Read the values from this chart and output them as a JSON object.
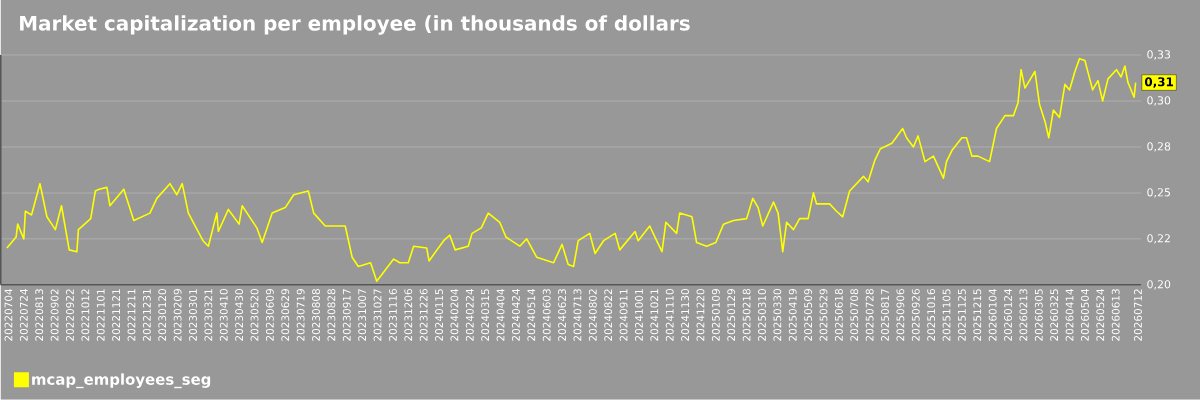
{
  "chart_data": {
    "type": "line",
    "title": "Market capitalization per employee (in thousands of dollars",
    "x": [
      "2022-07-02",
      "2022-07-14",
      "2022-07-16",
      "2022-07-24",
      "2022-07-26",
      "2022-08-03",
      "2022-08-14",
      "2022-08-23",
      "2022-09-03",
      "2022-09-11",
      "2022-09-21",
      "2022-10-01",
      "2022-10-03",
      "2022-10-19",
      "2022-10-25",
      "2022-10-30",
      "2022-11-09",
      "2022-11-13",
      "2022-12-01",
      "2022-12-14",
      "2023-01-04",
      "2023-01-13",
      "2023-01-30",
      "2023-02-08",
      "2023-02-15",
      "2023-02-23",
      "2023-03-14",
      "2023-03-21",
      "2023-04-01",
      "2023-04-03",
      "2023-04-16",
      "2023-04-30",
      "2023-05-04",
      "2023-05-23",
      "2023-05-30",
      "2023-06-12",
      "2023-06-29",
      "2023-07-10",
      "2023-07-29",
      "2023-08-05",
      "2023-08-20",
      "2023-09-15",
      "2023-09-24",
      "2023-10-02",
      "2023-10-18",
      "2023-10-26",
      "2023-11-17",
      "2023-11-25",
      "2023-12-06",
      "2023-12-13",
      "2023-12-30",
      "2024-01-02",
      "2024-01-21",
      "2024-01-29",
      "2024-02-05",
      "2024-02-22",
      "2024-02-27",
      "2024-03-10",
      "2024-03-19",
      "2024-04-03",
      "2024-04-11",
      "2024-04-29",
      "2024-05-08",
      "2024-05-21",
      "2024-06-12",
      "2024-06-23",
      "2024-07-01",
      "2024-07-08",
      "2024-07-14",
      "2024-07-29",
      "2024-08-05",
      "2024-08-16",
      "2024-08-31",
      "2024-09-06",
      "2024-09-26",
      "2024-09-30",
      "2024-10-15",
      "2024-10-24",
      "2024-10-31",
      "2024-11-05",
      "2024-11-19",
      "2024-11-23",
      "2024-12-09",
      "2024-12-15",
      "2024-12-28",
      "2025-01-09",
      "2025-01-19",
      "2025-02-01",
      "2025-02-18",
      "2025-02-26",
      "2025-03-05",
      "2025-03-11",
      "2025-03-25",
      "2025-03-31",
      "2025-04-06",
      "2025-04-11",
      "2025-04-20",
      "2025-04-28",
      "2025-05-09",
      "2025-05-16",
      "2025-05-20",
      "2025-06-06",
      "2025-06-15",
      "2025-06-23",
      "2025-07-02",
      "2025-07-20",
      "2025-07-26",
      "2025-08-04",
      "2025-08-11",
      "2025-08-26",
      "2025-09-09",
      "2025-09-14",
      "2025-09-23",
      "2025-09-29",
      "2025-10-08",
      "2025-10-19",
      "2025-11-01",
      "2025-11-05",
      "2025-11-12",
      "2025-11-25",
      "2025-12-01",
      "2025-12-08",
      "2025-12-16",
      "2025-12-31",
      "2026-01-09",
      "2026-01-20",
      "2026-01-31",
      "2026-02-06",
      "2026-02-10",
      "2026-02-15",
      "2026-02-28",
      "2026-03-06",
      "2026-03-13",
      "2026-03-18",
      "2026-03-24",
      "2026-04-01",
      "2026-04-08",
      "2026-04-14",
      "2026-04-21",
      "2026-04-27",
      "2026-05-04",
      "2026-05-14",
      "2026-05-21",
      "2026-05-27",
      "2026-06-03",
      "2026-06-14",
      "2026-06-20",
      "2026-06-25",
      "2026-06-29",
      "2026-07-07",
      "2026-07-09"
    ],
    "series": [
      {
        "name": "mcap_employees_seg",
        "color": "#ffff00",
        "values": [
          0.22,
          0.226,
          0.233,
          0.225,
          0.24,
          0.238,
          0.255,
          0.237,
          0.23,
          0.243,
          0.219,
          0.218,
          0.23,
          0.236,
          0.251,
          0.252,
          0.253,
          0.243,
          0.252,
          0.235,
          0.239,
          0.247,
          0.255,
          0.249,
          0.255,
          0.239,
          0.224,
          0.221,
          0.239,
          0.229,
          0.241,
          0.233,
          0.243,
          0.231,
          0.223,
          0.239,
          0.242,
          0.249,
          0.251,
          0.239,
          0.232,
          0.232,
          0.215,
          0.21,
          0.212,
          0.202,
          0.214,
          0.212,
          0.212,
          0.221,
          0.22,
          0.213,
          0.224,
          0.227,
          0.219,
          0.221,
          0.228,
          0.231,
          0.239,
          0.234,
          0.226,
          0.221,
          0.225,
          0.215,
          0.212,
          0.222,
          0.211,
          0.21,
          0.224,
          0.228,
          0.217,
          0.224,
          0.228,
          0.219,
          0.229,
          0.224,
          0.232,
          0.224,
          0.218,
          0.234,
          0.228,
          0.239,
          0.237,
          0.223,
          0.221,
          0.223,
          0.233,
          0.235,
          0.236,
          0.247,
          0.242,
          0.232,
          0.245,
          0.239,
          0.218,
          0.234,
          0.23,
          0.236,
          0.236,
          0.25,
          0.244,
          0.244,
          0.24,
          0.237,
          0.251,
          0.259,
          0.256,
          0.268,
          0.274,
          0.277,
          0.285,
          0.28,
          0.275,
          0.281,
          0.267,
          0.27,
          0.258,
          0.267,
          0.273,
          0.28,
          0.28,
          0.27,
          0.27,
          0.267,
          0.285,
          0.292,
          0.292,
          0.299,
          0.317,
          0.307,
          0.316,
          0.298,
          0.289,
          0.28,
          0.295,
          0.291,
          0.309,
          0.306,
          0.316,
          0.323,
          0.322,
          0.306,
          0.311,
          0.3,
          0.312,
          0.317,
          0.313,
          0.319,
          0.31,
          0.302,
          0.31
        ]
      }
    ],
    "xlim": [
      "2022-06-24",
      "2026-07-16"
    ],
    "xticks": [
      {
        "value": "2022-07-04",
        "label": "20220704"
      },
      {
        "value": "2022-07-24",
        "label": "20220724"
      },
      {
        "value": "2022-08-13",
        "label": "20220813"
      },
      {
        "value": "2022-09-02",
        "label": "20220902"
      },
      {
        "value": "2022-09-22",
        "label": "20220922"
      },
      {
        "value": "2022-10-12",
        "label": "20221012"
      },
      {
        "value": "2022-11-01",
        "label": "20221101"
      },
      {
        "value": "2022-11-21",
        "label": "20221121"
      },
      {
        "value": "2022-12-11",
        "label": "20221211"
      },
      {
        "value": "2022-12-31",
        "label": "20221231"
      },
      {
        "value": "2023-01-20",
        "label": "20230120"
      },
      {
        "value": "2023-02-09",
        "label": "20230209"
      },
      {
        "value": "2023-03-01",
        "label": "20230301"
      },
      {
        "value": "2023-03-21",
        "label": "20230321"
      },
      {
        "value": "2023-04-10",
        "label": "20230410"
      },
      {
        "value": "2023-04-30",
        "label": "20230430"
      },
      {
        "value": "2023-05-20",
        "label": "20230520"
      },
      {
        "value": "2023-06-09",
        "label": "20230609"
      },
      {
        "value": "2023-06-29",
        "label": "20230629"
      },
      {
        "value": "2023-07-19",
        "label": "20230719"
      },
      {
        "value": "2023-08-08",
        "label": "20230808"
      },
      {
        "value": "2023-08-28",
        "label": "20230828"
      },
      {
        "value": "2023-09-17",
        "label": "20230917"
      },
      {
        "value": "2023-10-07",
        "label": "20231007"
      },
      {
        "value": "2023-10-27",
        "label": "20231027"
      },
      {
        "value": "2023-11-16",
        "label": "20231116"
      },
      {
        "value": "2023-12-06",
        "label": "20231206"
      },
      {
        "value": "2023-12-26",
        "label": "20231226"
      },
      {
        "value": "2024-01-15",
        "label": "20240115"
      },
      {
        "value": "2024-02-04",
        "label": "20240204"
      },
      {
        "value": "2024-02-24",
        "label": "20240224"
      },
      {
        "value": "2024-03-15",
        "label": "20240315"
      },
      {
        "value": "2024-04-04",
        "label": "20240404"
      },
      {
        "value": "2024-04-24",
        "label": "20240424"
      },
      {
        "value": "2024-05-14",
        "label": "20240514"
      },
      {
        "value": "2024-06-03",
        "label": "20240603"
      },
      {
        "value": "2024-06-23",
        "label": "20240623"
      },
      {
        "value": "2024-07-13",
        "label": "20240713"
      },
      {
        "value": "2024-08-02",
        "label": "20240802"
      },
      {
        "value": "2024-08-22",
        "label": "20240822"
      },
      {
        "value": "2024-09-11",
        "label": "20240911"
      },
      {
        "value": "2024-10-01",
        "label": "20241001"
      },
      {
        "value": "2024-10-21",
        "label": "20241021"
      },
      {
        "value": "2024-11-10",
        "label": "20241110"
      },
      {
        "value": "2024-11-30",
        "label": "20241130"
      },
      {
        "value": "2024-12-20",
        "label": "20241220"
      },
      {
        "value": "2025-01-09",
        "label": "20250109"
      },
      {
        "value": "2025-01-29",
        "label": "20250129"
      },
      {
        "value": "2025-02-18",
        "label": "20250218"
      },
      {
        "value": "2025-03-10",
        "label": "20250310"
      },
      {
        "value": "2025-03-30",
        "label": "20250330"
      },
      {
        "value": "2025-04-19",
        "label": "20250419"
      },
      {
        "value": "2025-05-09",
        "label": "20250509"
      },
      {
        "value": "2025-05-29",
        "label": "20250529"
      },
      {
        "value": "2025-06-18",
        "label": "20250618"
      },
      {
        "value": "2025-07-08",
        "label": "20250708"
      },
      {
        "value": "2025-07-28",
        "label": "20250728"
      },
      {
        "value": "2025-08-17",
        "label": "20250817"
      },
      {
        "value": "2025-09-06",
        "label": "20250906"
      },
      {
        "value": "2025-09-26",
        "label": "20250926"
      },
      {
        "value": "2025-10-16",
        "label": "20251016"
      },
      {
        "value": "2025-11-05",
        "label": "20251105"
      },
      {
        "value": "2025-11-25",
        "label": "20251125"
      },
      {
        "value": "2025-12-15",
        "label": "20251215"
      },
      {
        "value": "2026-01-04",
        "label": "20260104"
      },
      {
        "value": "2026-01-24",
        "label": "20260124"
      },
      {
        "value": "2026-02-13",
        "label": "20260213"
      },
      {
        "value": "2026-03-05",
        "label": "20260305"
      },
      {
        "value": "2026-03-25",
        "label": "20260325"
      },
      {
        "value": "2026-04-14",
        "label": "20260414"
      },
      {
        "value": "2026-05-04",
        "label": "20260504"
      },
      {
        "value": "2026-05-24",
        "label": "20260524"
      },
      {
        "value": "2026-06-13",
        "label": "20260613"
      },
      {
        "value": "2026-07-12",
        "label": "20260712"
      }
    ],
    "ylim": [
      0.2,
      0.325
    ],
    "yticks": [
      {
        "value": 0.2,
        "label": "0,20"
      },
      {
        "value": 0.225,
        "label": "0,22"
      },
      {
        "value": 0.25,
        "label": "0,25"
      },
      {
        "value": 0.275,
        "label": "0,28"
      },
      {
        "value": 0.3,
        "label": "0,30"
      },
      {
        "value": 0.325,
        "label": "0,33"
      }
    ],
    "grid": "y",
    "legend": "bottom left",
    "annotations": [
      {
        "text": "0,31",
        "x": "2026-07-09",
        "y": 0.31
      }
    ]
  }
}
